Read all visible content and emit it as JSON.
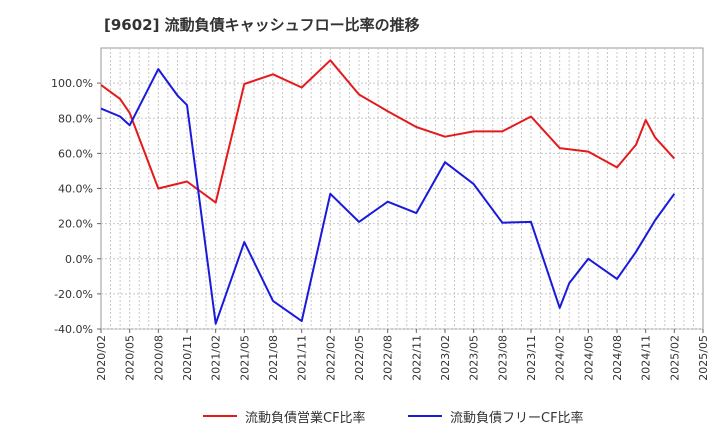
{
  "chart_data": {
    "type": "line",
    "title": "[9602]  流動負債キャッシュフロー比率の推移",
    "xlabel": "",
    "ylabel": "",
    "ylim": [
      -40,
      120
    ],
    "yticks": [
      -40,
      -20,
      0,
      20,
      40,
      60,
      80,
      100
    ],
    "ytick_labels": [
      "-40.0%",
      "-20.0%",
      "0.0%",
      "20.0%",
      "40.0%",
      "60.0%",
      "80.0%",
      "100.0%"
    ],
    "xticks": [
      "2020/02",
      "2020/05",
      "2020/08",
      "2020/11",
      "2021/02",
      "2021/05",
      "2021/08",
      "2021/11",
      "2022/02",
      "2022/05",
      "2022/08",
      "2022/11",
      "2023/02",
      "2023/05",
      "2023/08",
      "2023/11",
      "2024/02",
      "2024/05",
      "2024/08",
      "2024/11",
      "2025/02",
      "2025/05"
    ],
    "grid": true,
    "legend_position": "bottom",
    "series": [
      {
        "name": "流動負債営業CF比率",
        "color": "#e41a1c",
        "x": [
          "2020/02",
          "2020/04",
          "2020/05",
          "2020/08",
          "2020/11",
          "2021/02",
          "2021/05",
          "2021/08",
          "2021/11",
          "2022/02",
          "2022/05",
          "2022/08",
          "2022/11",
          "2023/02",
          "2023/05",
          "2023/08",
          "2023/11",
          "2024/02",
          "2024/05",
          "2024/08",
          "2024/10",
          "2024/11",
          "2024/12",
          "2025/02"
        ],
        "values": [
          99.0,
          91.0,
          83.0,
          40.0,
          44.0,
          32.0,
          99.5,
          105.0,
          97.5,
          113.0,
          93.5,
          84.0,
          75.0,
          69.5,
          72.5,
          72.5,
          81.0,
          63.0,
          61.0,
          52.0,
          65.0,
          79.0,
          69.0,
          57.0
        ]
      },
      {
        "name": "流動負債フリーCF比率",
        "color": "#1a1adc",
        "x": [
          "2020/02",
          "2020/04",
          "2020/05",
          "2020/08",
          "2020/10",
          "2020/11",
          "2021/02",
          "2021/05",
          "2021/08",
          "2021/11",
          "2022/02",
          "2022/05",
          "2022/08",
          "2022/11",
          "2023/02",
          "2023/05",
          "2023/08",
          "2023/11",
          "2024/02",
          "2024/03",
          "2024/05",
          "2024/08",
          "2024/10",
          "2024/12",
          "2025/02"
        ],
        "values": [
          85.5,
          81.0,
          76.0,
          108.0,
          93.0,
          87.5,
          -37.0,
          9.5,
          -24.0,
          -35.5,
          37.0,
          21.0,
          32.5,
          26.0,
          55.0,
          42.5,
          20.5,
          21.0,
          -28.0,
          -14.0,
          0.0,
          -11.5,
          4.0,
          22.0,
          37.0
        ]
      }
    ]
  }
}
